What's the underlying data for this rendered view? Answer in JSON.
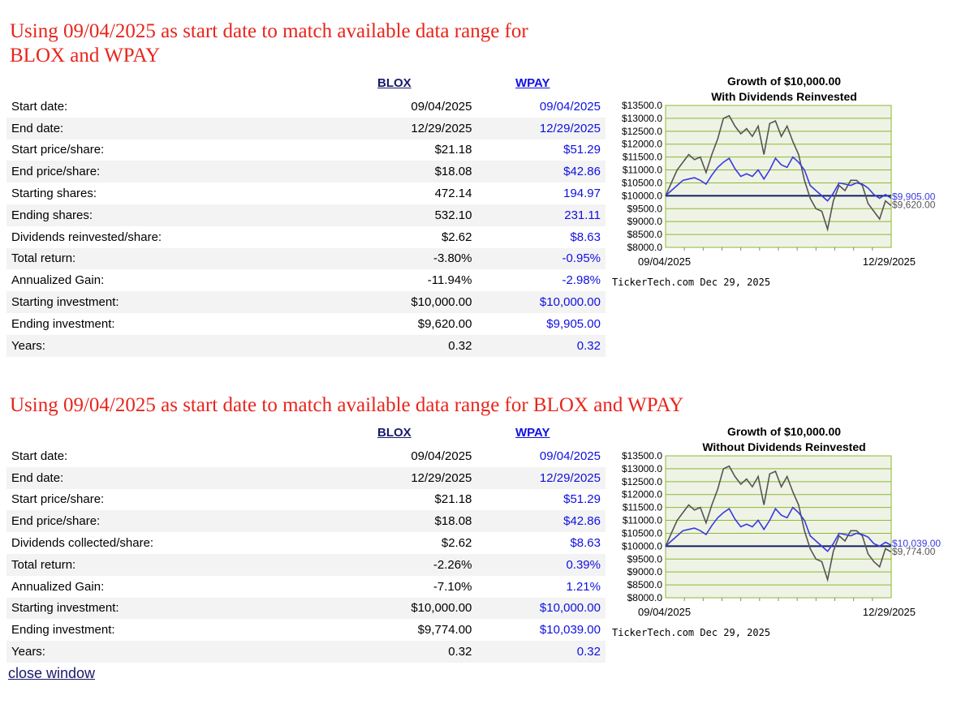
{
  "sections": [
    {
      "title_line1": "Using 09/04/2025 as start date to match available data range for",
      "title_line2": "BLOX and WPAY",
      "col1": "BLOX",
      "col2": "WPAY",
      "rows": [
        {
          "label": "Start date:",
          "blox": "09/04/2025",
          "wpay": "09/04/2025"
        },
        {
          "label": "End date:",
          "blox": "12/29/2025",
          "wpay": "12/29/2025"
        },
        {
          "label": "Start price/share:",
          "blox": "$21.18",
          "wpay": "$51.29"
        },
        {
          "label": "End price/share:",
          "blox": "$18.08",
          "wpay": "$42.86"
        },
        {
          "label": "Starting shares:",
          "blox": "472.14",
          "wpay": "194.97"
        },
        {
          "label": "Ending shares:",
          "blox": "532.10",
          "wpay": "231.11"
        },
        {
          "label": "Dividends reinvested/share:",
          "blox": "$2.62",
          "wpay": "$8.63"
        },
        {
          "label": "Total return:",
          "blox": "-3.80%",
          "wpay": "-0.95%"
        },
        {
          "label": "Annualized Gain:",
          "blox": "-11.94%",
          "wpay": "-2.98%"
        },
        {
          "label": "Starting investment:",
          "blox": "$10,000.00",
          "wpay": "$10,000.00"
        },
        {
          "label": "Ending investment:",
          "blox": "$9,620.00",
          "wpay": "$9,905.00"
        },
        {
          "label": "Years:",
          "blox": "0.32",
          "wpay": "0.32"
        }
      ]
    },
    {
      "title_line1": "Using 09/04/2025 as start date to match available data range for BLOX and WPAY",
      "col1": "BLOX",
      "col2": "WPAY",
      "rows": [
        {
          "label": "Start date:",
          "blox": "09/04/2025",
          "wpay": "09/04/2025"
        },
        {
          "label": "End date:",
          "blox": "12/29/2025",
          "wpay": "12/29/2025"
        },
        {
          "label": "Start price/share:",
          "blox": "$21.18",
          "wpay": "$51.29"
        },
        {
          "label": "End price/share:",
          "blox": "$18.08",
          "wpay": "$42.86"
        },
        {
          "label": "Dividends collected/share:",
          "blox": "$2.62",
          "wpay": "$8.63"
        },
        {
          "label": "Total return:",
          "blox": "-2.26%",
          "wpay": "0.39%"
        },
        {
          "label": "Annualized Gain:",
          "blox": "-7.10%",
          "wpay": "1.21%"
        },
        {
          "label": "Starting investment:",
          "blox": "$10,000.00",
          "wpay": "$10,000.00"
        },
        {
          "label": "Ending investment:",
          "blox": "$9,774.00",
          "wpay": "$10,039.00"
        },
        {
          "label": "Years:",
          "blox": "0.32",
          "wpay": "0.32"
        }
      ]
    }
  ],
  "close_link": "close window",
  "chart_data": [
    {
      "type": "line",
      "title": "Growth of $10,000.00",
      "subtitle": "With Dividends Reinvested",
      "credit": "TickerTech.com  Dec 29, 2025",
      "x_start_label": "09/04/2025",
      "x_end_label": "12/29/2025",
      "ylim": [
        8000,
        13500
      ],
      "yticks": [
        "$13500.0",
        "$13000.0",
        "$12500.0",
        "$12000.0",
        "$11500.0",
        "$11000.0",
        "$10500.0",
        "$10000.0",
        "$9500.0",
        "$9000.0",
        "$8500.0",
        "$8000.0"
      ],
      "grid": true,
      "colors": {
        "blox": "#555555",
        "wpay": "#3a3ae0",
        "baseline": "#102060",
        "grid": "#8fb832",
        "plot_bg": "#eef3e6"
      },
      "series": [
        {
          "name": "BLOX",
          "end_label": "$9,620.00",
          "values": [
            10000,
            10500,
            11000,
            11300,
            11600,
            11400,
            11500,
            10900,
            11600,
            12200,
            13000,
            13100,
            12700,
            12400,
            12600,
            12300,
            12700,
            11600,
            12800,
            12900,
            12300,
            12700,
            12100,
            11600,
            10600,
            9900,
            9500,
            9400,
            8700,
            9800,
            10400,
            10200,
            10600,
            10600,
            10400,
            9700,
            9400,
            9100,
            9800,
            9620
          ]
        },
        {
          "name": "WPAY",
          "end_label": "$9,905.00",
          "values": [
            10000,
            10200,
            10400,
            10600,
            10650,
            10700,
            10600,
            10450,
            10800,
            11100,
            11300,
            11450,
            11050,
            10750,
            10850,
            10750,
            11000,
            10650,
            11000,
            11450,
            11200,
            11100,
            11500,
            11300,
            11000,
            10400,
            10200,
            10000,
            9800,
            10100,
            10500,
            10450,
            10400,
            10500,
            10450,
            10300,
            10050,
            9900,
            10050,
            9905
          ]
        }
      ]
    },
    {
      "type": "line",
      "title": "Growth of $10,000.00",
      "subtitle": "Without Dividends Reinvested",
      "credit": "TickerTech.com  Dec 29, 2025",
      "x_start_label": "09/04/2025",
      "x_end_label": "12/29/2025",
      "ylim": [
        8000,
        13500
      ],
      "yticks": [
        "$13500.0",
        "$13000.0",
        "$12500.0",
        "$12000.0",
        "$11500.0",
        "$11000.0",
        "$10500.0",
        "$10000.0",
        "$9500.0",
        "$9000.0",
        "$8500.0",
        "$8000.0"
      ],
      "grid": true,
      "colors": {
        "blox": "#555555",
        "wpay": "#3a3ae0",
        "baseline": "#102060",
        "grid": "#8fb832",
        "plot_bg": "#eef3e6"
      },
      "series": [
        {
          "name": "BLOX",
          "end_label": "$9,774.00",
          "values": [
            10000,
            10500,
            11000,
            11300,
            11600,
            11400,
            11500,
            10900,
            11600,
            12200,
            13000,
            13100,
            12700,
            12400,
            12600,
            12300,
            12700,
            11600,
            12800,
            12900,
            12300,
            12700,
            12100,
            11600,
            10600,
            9900,
            9500,
            9400,
            8700,
            9800,
            10400,
            10200,
            10600,
            10600,
            10400,
            9700,
            9400,
            9200,
            9900,
            9774
          ]
        },
        {
          "name": "WPAY",
          "end_label": "$10,039.00",
          "values": [
            10000,
            10200,
            10400,
            10600,
            10650,
            10700,
            10600,
            10450,
            10800,
            11100,
            11300,
            11450,
            11050,
            10750,
            10850,
            10750,
            11000,
            10650,
            11000,
            11450,
            11200,
            11100,
            11500,
            11300,
            11000,
            10400,
            10200,
            10000,
            9800,
            10100,
            10500,
            10450,
            10400,
            10500,
            10450,
            10350,
            10100,
            10000,
            10150,
            10039
          ]
        }
      ]
    }
  ]
}
